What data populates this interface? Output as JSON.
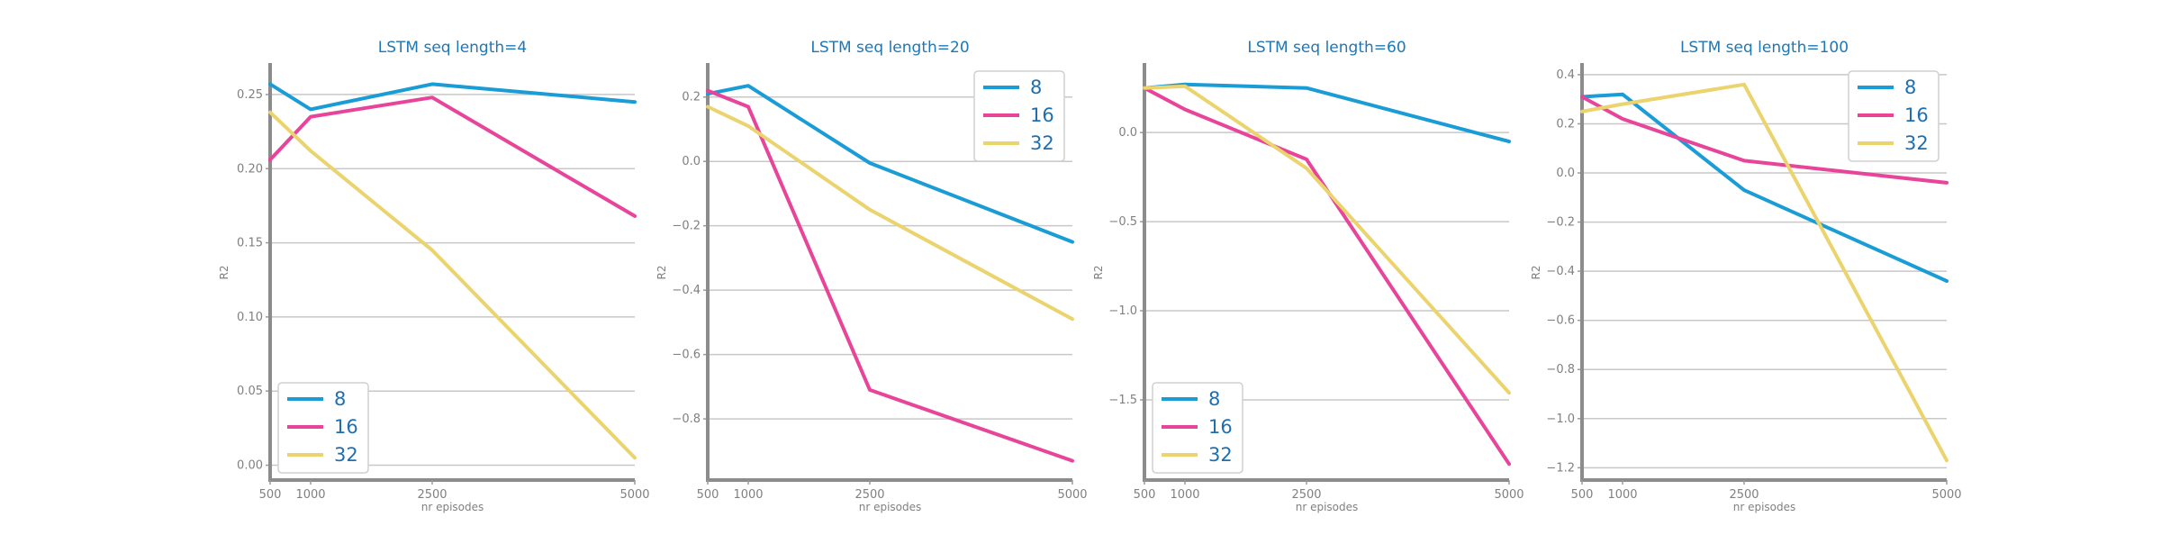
{
  "chart_data": [
    {
      "type": "line",
      "title": "LSTM seq length=4",
      "xlabel": "nr episodes",
      "ylabel": "R2",
      "x": [
        500,
        1000,
        2500,
        5000
      ],
      "xticks": [
        "500",
        "1000",
        "2500",
        "5000"
      ],
      "ylim": [
        -0.01,
        0.27
      ],
      "yticks": [
        0.0,
        0.05,
        0.1,
        0.15,
        0.2,
        0.25
      ],
      "yticklabels": [
        "0.00",
        "0.05",
        "0.10",
        "0.15",
        "0.20",
        "0.25"
      ],
      "grid": "horizontal",
      "legend": "lower-left",
      "series": [
        {
          "name": "8",
          "color": "#1a9cd6",
          "values": [
            0.257,
            0.24,
            0.257,
            0.245
          ]
        },
        {
          "name": "16",
          "color": "#e8449a",
          "values": [
            0.206,
            0.235,
            0.248,
            0.168
          ]
        },
        {
          "name": "32",
          "color": "#ebd36e",
          "values": [
            0.238,
            0.212,
            0.145,
            0.005
          ]
        }
      ]
    },
    {
      "type": "line",
      "title": "LSTM seq length=20",
      "xlabel": "nr episodes",
      "ylabel": "R2",
      "x": [
        500,
        1000,
        2500,
        5000
      ],
      "xticks": [
        "500",
        "1000",
        "2500",
        "5000"
      ],
      "ylim": [
        -0.99,
        0.3
      ],
      "yticks": [
        -0.8,
        -0.6,
        -0.4,
        -0.2,
        0.0,
        0.2
      ],
      "yticklabels": [
        "−0.8",
        "−0.6",
        "−0.4",
        "−0.2",
        "0.0",
        "0.2"
      ],
      "grid": "horizontal",
      "legend": "top-right",
      "series": [
        {
          "name": "8",
          "color": "#1a9cd6",
          "values": [
            0.21,
            0.235,
            -0.005,
            -0.25
          ]
        },
        {
          "name": "16",
          "color": "#e8449a",
          "values": [
            0.22,
            0.17,
            -0.71,
            -0.93
          ]
        },
        {
          "name": "32",
          "color": "#ebd36e",
          "values": [
            0.17,
            0.11,
            -0.15,
            -0.49
          ]
        }
      ]
    },
    {
      "type": "line",
      "title": "LSTM seq length=60",
      "xlabel": "nr episodes",
      "ylabel": "R2",
      "x": [
        500,
        1000,
        2500,
        5000
      ],
      "xticks": [
        "500",
        "1000",
        "2500",
        "5000"
      ],
      "ylim": [
        -1.95,
        0.38
      ],
      "yticks": [
        -1.5,
        -1.0,
        -0.5,
        0.0
      ],
      "yticklabels": [
        "−1.5",
        "−1.0",
        "−0.5",
        "0.0"
      ],
      "grid": "horizontal",
      "legend": "lower-left",
      "series": [
        {
          "name": "8",
          "color": "#1a9cd6",
          "values": [
            0.25,
            0.27,
            0.25,
            -0.05
          ]
        },
        {
          "name": "16",
          "color": "#e8449a",
          "values": [
            0.25,
            0.13,
            -0.15,
            -1.86
          ]
        },
        {
          "name": "32",
          "color": "#ebd36e",
          "values": [
            0.25,
            0.26,
            -0.2,
            -1.46
          ]
        }
      ]
    },
    {
      "type": "line",
      "title": "LSTM seq length=100",
      "xlabel": "nr episodes",
      "ylabel": "R2",
      "x": [
        500,
        1000,
        2500,
        5000
      ],
      "xticks": [
        "500",
        "1000",
        "2500",
        "5000"
      ],
      "ylim": [
        -1.25,
        0.44
      ],
      "yticks": [
        -1.2,
        -1.0,
        -0.8,
        -0.6,
        -0.4,
        -0.2,
        0.0,
        0.2,
        0.4
      ],
      "yticklabels": [
        "−1.2",
        "−1.0",
        "−0.8",
        "−0.6",
        "−0.4",
        "−0.2",
        "0.0",
        "0.2",
        "0.4"
      ],
      "grid": "horizontal",
      "legend": "top-right",
      "series": [
        {
          "name": "8",
          "color": "#1a9cd6",
          "values": [
            0.31,
            0.32,
            -0.07,
            -0.44
          ]
        },
        {
          "name": "16",
          "color": "#e8449a",
          "values": [
            0.31,
            0.22,
            0.05,
            -0.04
          ]
        },
        {
          "name": "32",
          "color": "#ebd36e",
          "values": [
            0.25,
            0.28,
            0.36,
            -1.17
          ]
        }
      ]
    }
  ]
}
